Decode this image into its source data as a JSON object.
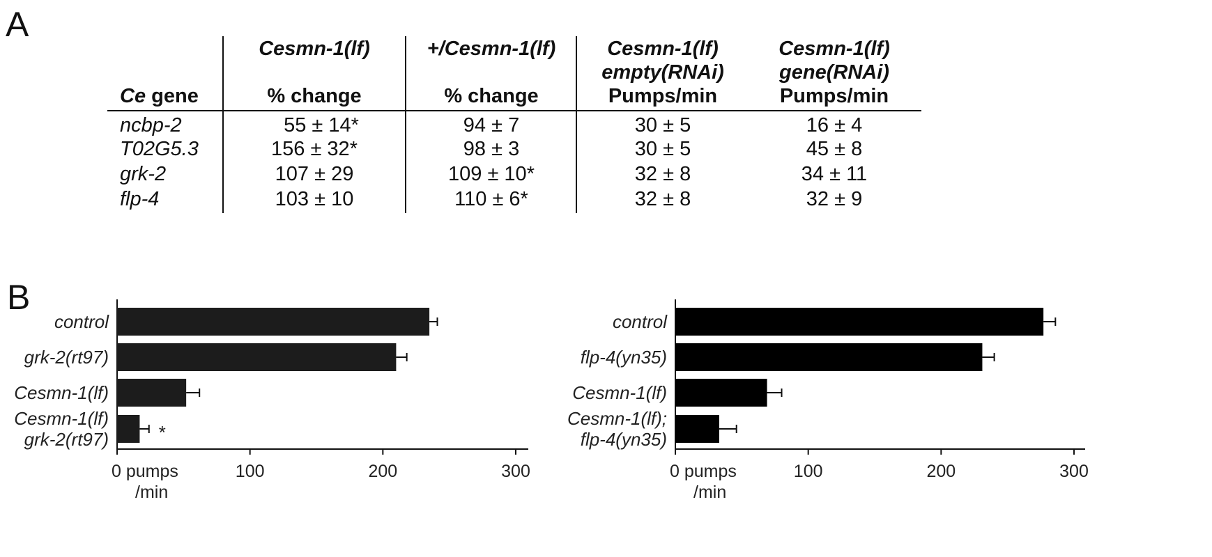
{
  "panels": {
    "a": "A",
    "b": "B"
  },
  "table": {
    "header_row1": [
      "",
      "Cesmn-1(lf)",
      "+/Cesmn-1(lf)",
      "Cesmn-1(lf)",
      "Cesmn-1(lf)"
    ],
    "header_row2": [
      "",
      "",
      "",
      "empty(RNAi)",
      "gene(RNAi)"
    ],
    "header_row3_ce": "Ce",
    "header_row3_gene": " gene",
    "header_row3": [
      "",
      "% change",
      "% change",
      "Pumps/min",
      "Pumps/min"
    ],
    "rows": [
      {
        "gene": "ncbp-2",
        "c1": "55 ± 14*",
        "c2": "94 ± 7",
        "c3": "30 ± 5",
        "c4": "16 ± 4"
      },
      {
        "gene": "T02G5.3",
        "c1": "156 ± 32*",
        "c2": "98 ± 3",
        "c3": "30 ± 5",
        "c4": "45 ± 8"
      },
      {
        "gene": "grk-2",
        "c1": "107 ± 29",
        "c2": "109 ± 10*",
        "c3": "32 ± 8",
        "c4": "34 ± 11"
      },
      {
        "gene": "flp-4",
        "c1": "103 ± 10",
        "c2": "110 ± 6*",
        "c3": "32 ± 8",
        "c4": "32 ± 9"
      }
    ]
  },
  "chart_data": [
    {
      "type": "bar",
      "orientation": "horizontal",
      "categories": [
        "control",
        "grk-2(rt97)",
        "Cesmn-1(lf)",
        "Cesmn-1(lf)\ngrk-2(rt97)"
      ],
      "values": [
        235,
        210,
        52,
        17
      ],
      "errors": [
        6,
        8,
        10,
        7
      ],
      "annotations": [
        "",
        "",
        "",
        "*"
      ],
      "xlim": [
        0,
        300
      ],
      "xticks": [
        "0 pumps",
        "100",
        "200",
        "300"
      ],
      "xunit": "/min",
      "bar_color": "#1c1c1c"
    },
    {
      "type": "bar",
      "orientation": "horizontal",
      "categories": [
        "control",
        "flp-4(yn35)",
        "Cesmn-1(lf)",
        "Cesmn-1(lf);\nflp-4(yn35)"
      ],
      "values": [
        277,
        231,
        69,
        33
      ],
      "errors": [
        9,
        9,
        11,
        13
      ],
      "annotations": [
        "",
        "",
        "",
        ""
      ],
      "xlim": [
        0,
        300
      ],
      "xticks": [
        "0 pumps",
        "100",
        "200",
        "300"
      ],
      "xunit": "/min",
      "bar_color": "#000000"
    }
  ]
}
